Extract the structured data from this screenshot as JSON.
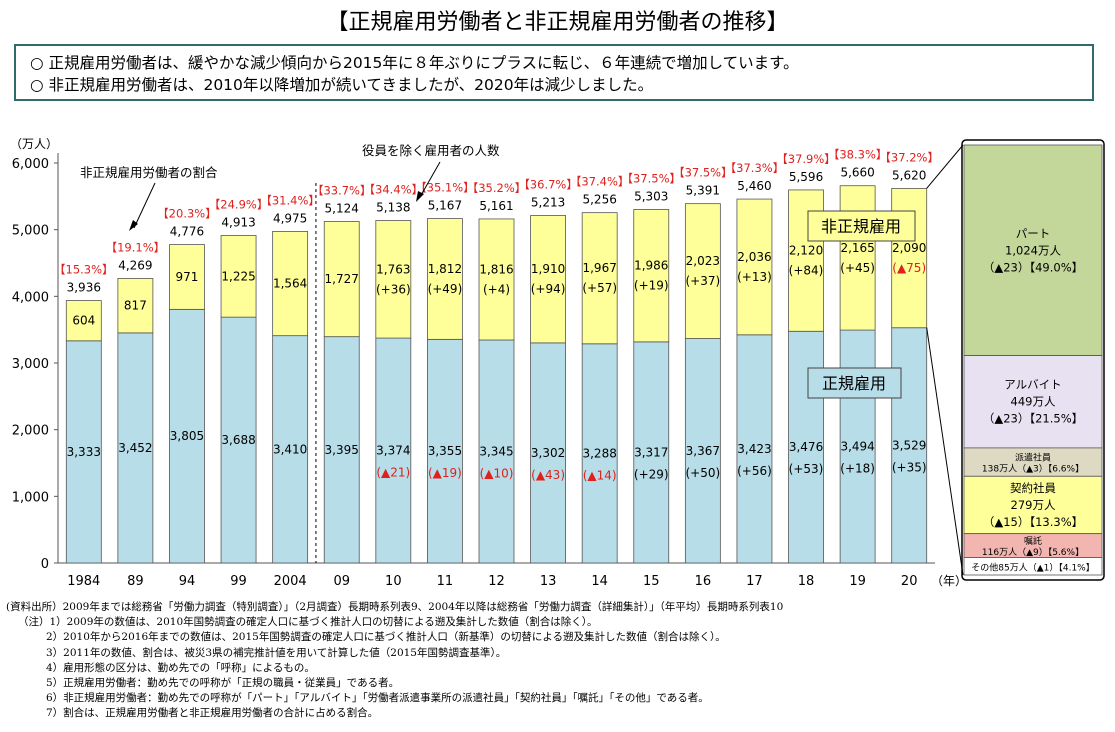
{
  "title": "【正規雇用労働者と非正規雇用労働者の推移】",
  "summary": [
    "○ 正規雇用労働者は、緩やかな減少傾向から2015年に８年ぶりにプラスに転じ、６年連続で増加しています。",
    "○ 非正規雇用労働者は、2010年以降増加が続いてきましたが、2020年は減少しました。"
  ],
  "colors": {
    "regular": "#b7dde8",
    "nonregular": "#ffff99",
    "red": "#e0201c",
    "part": "#c4d79b",
    "arbeit": "#e8e1f2",
    "dispatch": "#ddd9c3",
    "contract": "#ffff99",
    "entrusted": "#f2b5b0",
    "other": "#ffffff"
  },
  "chart_data": {
    "type": "bar",
    "stacked": true,
    "yunit": "（万人）",
    "ylim": [
      0,
      6000
    ],
    "yticks": [
      "0",
      "1,000",
      "2,000",
      "3,000",
      "4,000",
      "5,000",
      "6,000"
    ],
    "xsuffix": "（年）",
    "categories": [
      "1984",
      "89",
      "94",
      "99",
      "2004",
      "09",
      "10",
      "11",
      "12",
      "13",
      "14",
      "15",
      "16",
      "17",
      "18",
      "19",
      "20"
    ],
    "series": [
      {
        "name": "正規雇用",
        "values": [
          3333,
          3452,
          3805,
          3688,
          3410,
          3395,
          3374,
          3355,
          3345,
          3302,
          3288,
          3317,
          3367,
          3423,
          3476,
          3494,
          3529
        ],
        "labels": [
          "3,333",
          "3,452",
          "3,805",
          "3,688",
          "3,410",
          "3,395",
          "3,374",
          "3,355",
          "3,345",
          "3,302",
          "3,288",
          "3,317",
          "3,367",
          "3,423",
          "3,476",
          "3,494",
          "3,529"
        ],
        "changes": [
          "",
          "",
          "",
          "",
          "",
          "",
          "▲21",
          "▲19",
          "▲10",
          "▲43",
          "▲14",
          "+29",
          "+50",
          "+56",
          "+53",
          "+18",
          "+35"
        ]
      },
      {
        "name": "非正規雇用",
        "values": [
          604,
          817,
          971,
          1225,
          1564,
          1727,
          1763,
          1812,
          1816,
          1910,
          1967,
          1986,
          2023,
          2036,
          2120,
          2165,
          2090
        ],
        "labels": [
          "604",
          "817",
          "971",
          "1,225",
          "1,564",
          "1,727",
          "1,763",
          "1,812",
          "1,816",
          "1,910",
          "1,967",
          "1,986",
          "2,023",
          "2,036",
          "2,120",
          "2,165",
          "2,090"
        ],
        "changes": [
          "",
          "",
          "",
          "",
          "",
          "",
          "+36",
          "+49",
          "+4",
          "+94",
          "+57",
          "+19",
          "+37",
          "+13",
          "+84",
          "+45",
          "▲75"
        ]
      }
    ],
    "totals": [
      3936,
      4269,
      4776,
      4913,
      4975,
      5124,
      5138,
      5167,
      5161,
      5213,
      5256,
      5303,
      5391,
      5460,
      5596,
      5660,
      5620
    ],
    "total_labels": [
      "3,936",
      "4,269",
      "4,776",
      "4,913",
      "4,975",
      "5,124",
      "5,138",
      "5,167",
      "5,161",
      "5,213",
      "5,256",
      "5,303",
      "5,391",
      "5,460",
      "5,596",
      "5,660",
      "5,620"
    ],
    "ratios": [
      "【15.3%】",
      "【19.1%】",
      "【20.3%】",
      "【24.9%】",
      "【31.4%】",
      "【33.7%】",
      "【34.4%】",
      "【35.1%】",
      "【35.2%】",
      "【36.7%】",
      "【37.4%】",
      "【37.5%】",
      "【37.5%】",
      "【37.3%】",
      "【37.9%】",
      "【38.3%】",
      "【37.2%】"
    ],
    "annotations": {
      "ratio": "非正規雇用労働者の割合",
      "total": "役員を除く雇用者の人数",
      "regular_box": "正規雇用",
      "nonregular_box": "非正規雇用"
    },
    "breakdown": [
      {
        "name": "パート",
        "value": 1024,
        "lines": [
          "パート",
          "1,024万人",
          "（▲23）【49.0%】"
        ]
      },
      {
        "name": "アルバイト",
        "value": 449,
        "lines": [
          "アルバイト",
          "449万人",
          "（▲23）【21.5%】"
        ]
      },
      {
        "name": "派遣社員",
        "value": 138,
        "lines": [
          "派遣社員",
          "138万人（▲3）【6.6%】"
        ]
      },
      {
        "name": "契約社員",
        "value": 279,
        "lines": [
          "契約社員",
          "279万人",
          "（▲15）【13.3%】"
        ]
      },
      {
        "name": "嘱託",
        "value": 116,
        "lines": [
          "嘱託",
          "116万人（▲9）【5.6%】"
        ]
      },
      {
        "name": "その他",
        "value": 85,
        "lines": [
          "その他85万人（▲1）【4.1%】"
        ]
      }
    ]
  },
  "notes": {
    "source": "(資料出所）2009年までは総務省「労働力調査（特別調査）」（2月調査）長期時系列表9、2004年以降は総務省「労働力調査（詳細集計）」（年平均）長期時系列表10",
    "items": [
      "（注）1）2009年の数値は、2010年国勢調査の確定人口に基づく推計人口の切替による遡及集計した数値（割合は除く）。",
      "2）2010年から2016年までの数値は、2015年国勢調査の確定人口に基づく推計人口（新基準）の切替による遡及集計した数値（割合は除く）。",
      "3）2011年の数値、割合は、被災3県の補完推計値を用いて計算した値（2015年国勢調査基準）。",
      "4）雇用形態の区分は、勤め先での「呼称」によるもの。",
      "5）正規雇用労働者：勤め先での呼称が「正規の職員・従業員」である者。",
      "6）非正規雇用労働者：勤め先での呼称が「パート」「アルバイト」「労働者派遣事業所の派遣社員」「契約社員」「嘱託」「その他」である者。",
      "7）割合は、正規雇用労働者と非正規雇用労働者の合計に占める割合。"
    ]
  }
}
